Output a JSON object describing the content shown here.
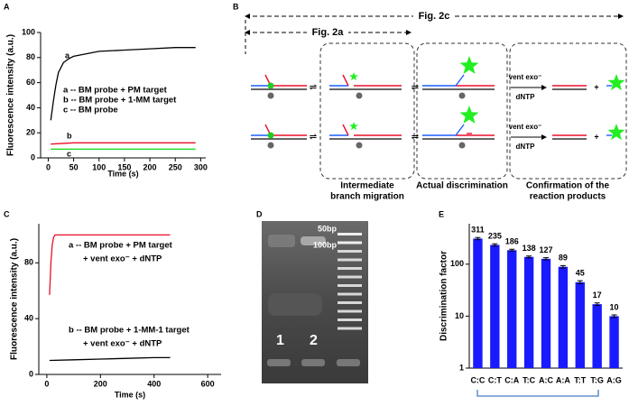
{
  "panel_letters": [
    "A",
    "B",
    "C",
    "D",
    "E"
  ],
  "chart_data": [
    {
      "type": "line",
      "x_label": "Time (s)",
      "y_label": "Fluorescence intensity (a.u.)",
      "xlim": [
        -15,
        310
      ],
      "ylim": [
        0,
        100
      ],
      "xticks": [
        0,
        50,
        100,
        150,
        200,
        250,
        300
      ],
      "yticks": [
        0,
        20,
        40,
        60,
        80,
        100
      ],
      "series": [
        {
          "name": "a",
          "color": "#000000",
          "x": [
            5,
            10,
            15,
            20,
            30,
            40,
            50,
            75,
            100,
            150,
            200,
            250,
            290
          ],
          "values": [
            30,
            45,
            58,
            68,
            76,
            79,
            81,
            83,
            85,
            86,
            87,
            88,
            88
          ]
        },
        {
          "name": "b",
          "color": "#e8102a",
          "x": [
            5,
            50,
            100,
            150,
            200,
            250,
            290
          ],
          "values": [
            11,
            12,
            12,
            12,
            12,
            12,
            12
          ]
        },
        {
          "name": "c",
          "color": "#22dd22",
          "x": [
            5,
            50,
            100,
            150,
            200,
            250,
            290
          ],
          "values": [
            7,
            7,
            7,
            7,
            7,
            7,
            7
          ]
        }
      ],
      "annotations": [
        "a -- BM probe + PM target",
        "b -- BM probe + 1-MM target",
        "c -- BM probe"
      ]
    },
    {
      "type": "line",
      "x_label": "Time (s)",
      "y_label": "Fluorescence intensity (a.u.)",
      "xlim": [
        -30,
        650
      ],
      "ylim": [
        0,
        108
      ],
      "xticks": [
        0,
        200,
        400,
        600
      ],
      "yticks": [
        0,
        40,
        80
      ],
      "series": [
        {
          "name": "a",
          "color": "#e8102a",
          "x": [
            10,
            15,
            20,
            25,
            30,
            50,
            100,
            200,
            300,
            400,
            460
          ],
          "values": [
            57,
            80,
            93,
            98,
            100,
            100,
            100,
            100,
            100,
            100,
            100
          ]
        },
        {
          "name": "b",
          "color": "#000000",
          "x": [
            10,
            100,
            200,
            300,
            400,
            460
          ],
          "values": [
            10,
            10.5,
            11,
            11.5,
            12,
            12
          ]
        }
      ],
      "annotations": [
        "a -- BM probe + PM target",
        "+ vent exo⁻ + dNTP",
        "b -- BM probe + 1-MM-1 target",
        "+ vent exo⁻ + dNTP"
      ]
    },
    {
      "type": "bar",
      "y_label": "Discrimination factor",
      "log_y": true,
      "color": "#1a1aff",
      "categories": [
        "C:C",
        "C:T",
        "C:A",
        "T:C",
        "A:C",
        "A:A",
        "T:T",
        "T:G",
        "A:G"
      ],
      "values": [
        311,
        235,
        186,
        138,
        127,
        89,
        45,
        17,
        10
      ],
      "errors": [
        15,
        12,
        8,
        6,
        6,
        5,
        3,
        1,
        0.6
      ],
      "ylim": [
        1,
        600
      ],
      "yticks": [
        1,
        10,
        100
      ]
    }
  ],
  "diagram": {
    "fig_2c": "Fig. 2c",
    "fig_2a": "Fig. 2a",
    "enzyme": [
      "vent exo⁻",
      "vent exo⁻"
    ],
    "dntp": [
      "dNTP",
      "dNTP"
    ],
    "plus": [
      "+",
      "+"
    ],
    "stages": [
      [
        "Intermediate",
        "branch migration"
      ],
      [
        "Actual discrimination"
      ],
      [
        "Confirmation of the",
        "reaction products"
      ]
    ]
  },
  "gel": {
    "ladder": [
      "50bp",
      "100bp"
    ],
    "lanes": [
      "1",
      "2"
    ]
  }
}
